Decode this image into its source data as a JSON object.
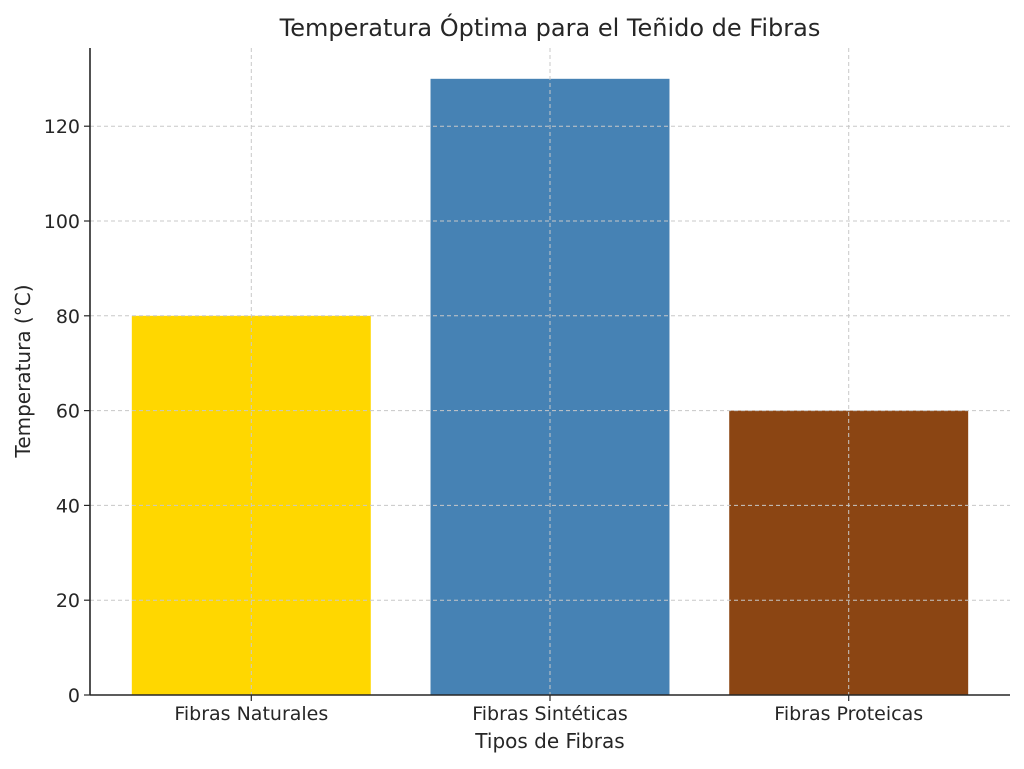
{
  "chart_data": {
    "type": "bar",
    "title": "Temperatura Óptima para el Teñido de Fibras",
    "xlabel": "Tipos de Fibras",
    "ylabel": "Temperatura (°C)",
    "categories": [
      "Fibras Naturales",
      "Fibras Sintéticas",
      "Fibras Proteicas"
    ],
    "values": [
      80,
      130,
      60
    ],
    "colors": [
      "#FFD700",
      "#4682B4",
      "#8B4513"
    ],
    "ylim": [
      0,
      136.5
    ],
    "yticks": [
      0,
      20,
      40,
      60,
      80,
      100,
      120
    ],
    "grid": true,
    "legend": "none"
  }
}
